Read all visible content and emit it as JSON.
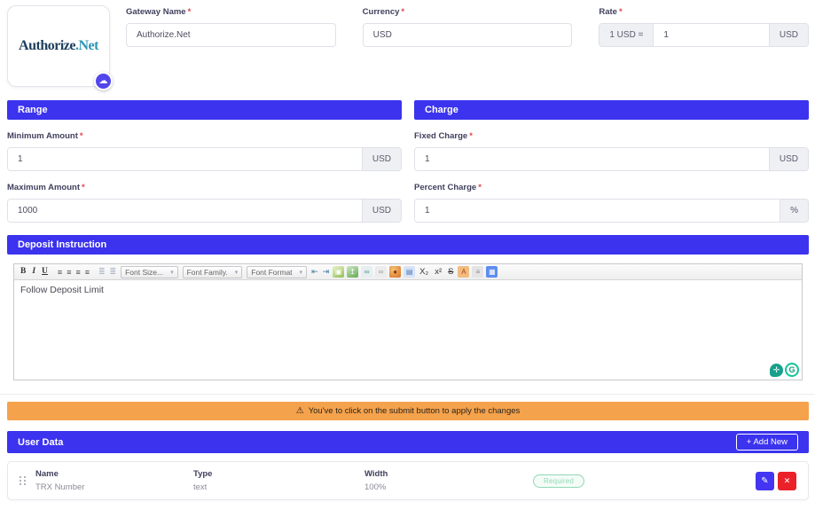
{
  "required_mark": "*",
  "colors": {
    "accent": "#3b33ee",
    "warning_bg": "#f5a24d",
    "danger": "#ea2129",
    "success": "#8ed8b2",
    "logo_primary": "#1d3e5e",
    "logo_secondary": "#2d96b5"
  },
  "gateway": {
    "logo_primary": "Authorize",
    "logo_secondary": ".Net",
    "upload_glyph": "☁",
    "gateway_name": {
      "label": "Gateway Name",
      "value": "Authorize.Net"
    },
    "currency": {
      "label": "Currency",
      "value": "USD"
    },
    "rate": {
      "label": "Rate",
      "prefix": "1 USD =",
      "value": "1",
      "suffix": "USD"
    }
  },
  "range": {
    "title": "Range",
    "minimum": {
      "label": "Minimum Amount",
      "value": "1",
      "suffix": "USD"
    },
    "maximum": {
      "label": "Maximum Amount",
      "value": "1000",
      "suffix": "USD"
    }
  },
  "charge": {
    "title": "Charge",
    "fixed": {
      "label": "Fixed Charge",
      "value": "1",
      "suffix": "USD"
    },
    "percent": {
      "label": "Percent Charge",
      "value": "1",
      "suffix": "%"
    }
  },
  "deposit": {
    "title": "Deposit Instruction",
    "content": "Follow Deposit Limit",
    "toolbar": {
      "bold": "B",
      "italic": "I",
      "underline": "U",
      "align_glyph": "≡",
      "list_glyph": "≣",
      "font_size": "Font Size...",
      "font_family": "Font Family.",
      "font_format": "Font Format",
      "caret": "▾",
      "outdent": "⇤",
      "indent": "⇥",
      "subscript": "X₂",
      "superscript": "x²",
      "strikethrough": "S",
      "icons": [
        {
          "name": "insert-image-icon",
          "style": "background:linear-gradient(150deg,#eaf3cb,#8fbf53);color:#ffffff",
          "glyph": "▣"
        },
        {
          "name": "insert-file-icon",
          "style": "background:linear-gradient(150deg,#cfe8c6,#63ab54);color:#ffffff",
          "glyph": "↥"
        },
        {
          "name": "link-icon",
          "style": "background:#e7eeee;color:#4a8f8f",
          "glyph": "∞"
        },
        {
          "name": "unlink-icon",
          "style": "background:#ececec;color:#9a9a9a",
          "glyph": "∞"
        },
        {
          "name": "special-media-icon",
          "style": "background:radial-gradient(circle at 35% 30%,#f6c270,#d96f2c);color:#8a3c0c",
          "glyph": "●"
        },
        {
          "name": "source-edit-icon",
          "style": "background:#d7e4f7;color:#4a76b8",
          "glyph": "▤"
        },
        {
          "name": "remove-format-icon",
          "style": "background:#f3bb82;color:#a14a10",
          "glyph": "A"
        },
        {
          "name": "horizontal-rule-icon",
          "style": "background:#e4e4e4;color:#8a8a8a",
          "glyph": "≡"
        },
        {
          "name": "insert-table-icon",
          "style": "background:#5d8df0;color:#ffffff",
          "glyph": "▦"
        }
      ]
    },
    "grammarly": {
      "bulb_glyph": "✛",
      "g_label": "G"
    }
  },
  "notice": {
    "icon": "⚠",
    "text": "You've to click on the submit button to apply the changes"
  },
  "user_data": {
    "title": "User Data",
    "add_new_label": "+ Add New",
    "columns": {
      "name": "Name",
      "type": "Type",
      "width": "Width"
    },
    "rows": [
      {
        "name": "TRX Number",
        "type": "text",
        "width": "100%",
        "badge": "Required"
      }
    ],
    "edit_glyph": "✎",
    "delete_glyph": "✕"
  }
}
